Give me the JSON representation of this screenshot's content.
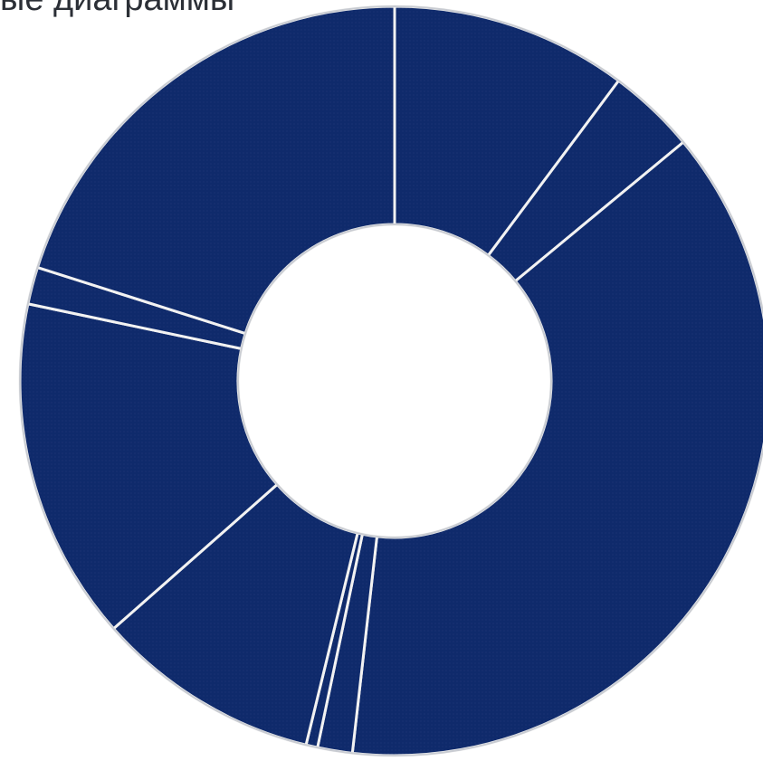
{
  "chart_data": {
    "type": "pie",
    "title": "ые диаграммы",
    "donut": true,
    "colors": {
      "slice": "#0f2a6b",
      "divider": "#f2f2f2",
      "edge": "#c9ccd2"
    },
    "slices": [
      {
        "value": 10.2
      },
      {
        "value": 3.8
      },
      {
        "value": 37.8
      },
      {
        "value": 1.5
      },
      {
        "value": 0.5
      },
      {
        "value": 9.7
      },
      {
        "value": 14.8
      },
      {
        "value": 1.6
      },
      {
        "value": 20.1
      }
    ]
  }
}
